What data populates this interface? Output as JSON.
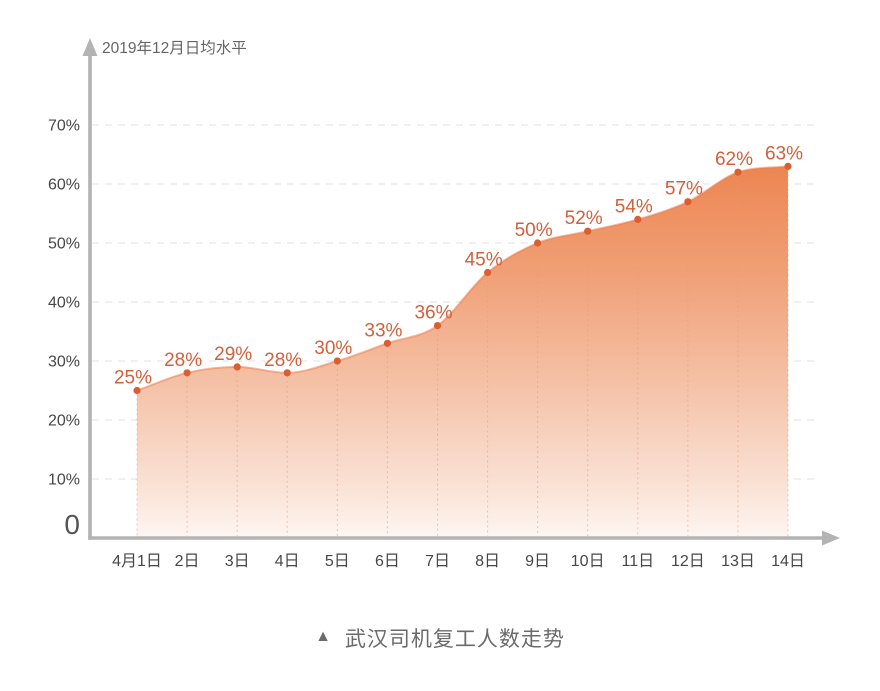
{
  "figure": {
    "caption_marker": "▲",
    "caption": "武汉司机复工人数走势"
  },
  "chart_data": {
    "type": "area",
    "title": "武汉司机复工人数走势",
    "ylabel": "2019年12月日均水平",
    "xlabel": "",
    "unit": "%",
    "categories": [
      "4月1日",
      "2日",
      "3日",
      "4日",
      "5日",
      "6日",
      "7日",
      "8日",
      "9日",
      "10日",
      "11日",
      "12日",
      "13日",
      "14日"
    ],
    "values": [
      25,
      28,
      29,
      28,
      30,
      33,
      36,
      45,
      50,
      52,
      54,
      57,
      62,
      63
    ],
    "data_labels": [
      "25%",
      "28%",
      "29%",
      "28%",
      "30%",
      "33%",
      "36%",
      "45%",
      "50%",
      "52%",
      "54%",
      "57%",
      "62%",
      "63%"
    ],
    "y_ticks": [
      {
        "value": 0,
        "label": "0"
      },
      {
        "value": 10,
        "label": "10%"
      },
      {
        "value": 20,
        "label": "20%"
      },
      {
        "value": 30,
        "label": "30%"
      },
      {
        "value": 40,
        "label": "40%"
      },
      {
        "value": 50,
        "label": "50%"
      },
      {
        "value": 60,
        "label": "60%"
      },
      {
        "value": 70,
        "label": "70%"
      }
    ],
    "ylim": [
      0,
      75
    ],
    "grid": "dashed-horizontal",
    "legend": "none",
    "colors": {
      "data_label": "#D2603C",
      "dot": "#DB5E31",
      "line_edge": "#E87A4A",
      "area_top": "#EC8450",
      "area_mid1": "#F0A076",
      "area_mid2": "#F5C5AC",
      "area_mid3": "#FAE3D7",
      "area_bottom": "#FEF7F3",
      "guide_line": "#E89B74",
      "axis": "#B3B3B3",
      "grid_line": "#E7E7E7",
      "tick_text": "#474747",
      "zero_text": "#555555",
      "axis_title_text": "#666666",
      "caption_text": "#6B6B6B"
    }
  }
}
